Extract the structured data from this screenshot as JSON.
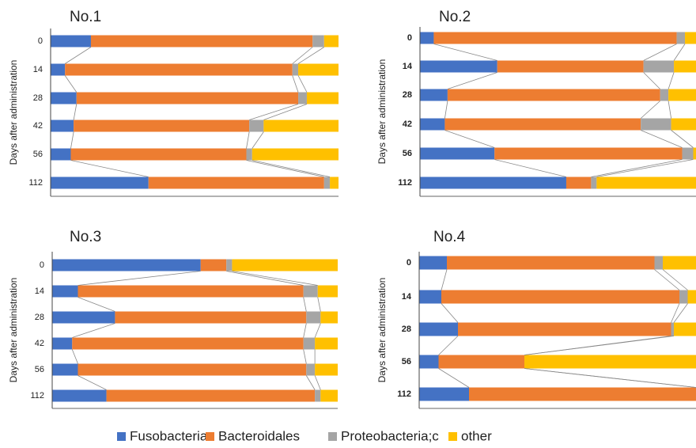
{
  "chart_data": [
    {
      "type": "stacked-bar",
      "title": "No.1",
      "ylabel": "Days after administration",
      "xlim": [
        0,
        100
      ],
      "categories": [
        "0",
        "14",
        "28",
        "42",
        "56",
        "112"
      ],
      "series": [
        {
          "name": "Fusobacteria",
          "color": "#4472c4",
          "values": [
            14,
            5,
            9,
            8,
            7,
            34
          ]
        },
        {
          "name": "Bacteroidales",
          "color": "#ed7d31",
          "values": [
            77,
            79,
            77,
            61,
            61,
            61
          ]
        },
        {
          "name": "Proteobacteria;c",
          "color": "#a5a5a5",
          "values": [
            4,
            2,
            3,
            5,
            2,
            2
          ]
        },
        {
          "name": "other",
          "color": "#ffc000",
          "values": [
            5,
            14,
            11,
            26,
            30,
            3
          ]
        }
      ]
    },
    {
      "type": "stacked-bar",
      "title": "No.2",
      "ylabel": "Days after administration",
      "xlim": [
        0,
        100
      ],
      "categories": [
        "0",
        "14",
        "28",
        "42",
        "56",
        "112"
      ],
      "series": [
        {
          "name": "Fusobacteria",
          "color": "#4472c4",
          "values": [
            5,
            28,
            10,
            9,
            27,
            53
          ]
        },
        {
          "name": "Bacteroidales",
          "color": "#ed7d31",
          "values": [
            88,
            53,
            77,
            71,
            68,
            9
          ]
        },
        {
          "name": "Proteobacteria;c",
          "color": "#a5a5a5",
          "values": [
            3,
            11,
            3,
            11,
            4,
            2
          ]
        },
        {
          "name": "other",
          "color": "#ffc000",
          "values": [
            4,
            8,
            10,
            9,
            1,
            36
          ]
        }
      ]
    },
    {
      "type": "stacked-bar",
      "title": "No.3",
      "ylabel": "Days after administration",
      "xlim": [
        0,
        100
      ],
      "categories": [
        "0",
        "14",
        "28",
        "42",
        "56",
        "112"
      ],
      "series": [
        {
          "name": "Fusobacteria",
          "color": "#4472c4",
          "values": [
            52,
            9,
            22,
            7,
            9,
            19
          ]
        },
        {
          "name": "Bacteroidales",
          "color": "#ed7d31",
          "values": [
            9,
            79,
            67,
            81,
            80,
            73
          ]
        },
        {
          "name": "Proteobacteria;c",
          "color": "#a5a5a5",
          "values": [
            2,
            5,
            5,
            4,
            3,
            2
          ]
        },
        {
          "name": "other",
          "color": "#ffc000",
          "values": [
            37,
            7,
            6,
            8,
            8,
            6
          ]
        }
      ]
    },
    {
      "type": "stacked-bar",
      "title": "No.4",
      "ylabel": "Days after administration",
      "xlim": [
        0,
        100
      ],
      "categories": [
        "0",
        "14",
        "28",
        "56",
        "112"
      ],
      "series": [
        {
          "name": "Fusobacteria",
          "color": "#4472c4",
          "values": [
            10,
            8,
            14,
            7,
            18
          ]
        },
        {
          "name": "Bacteroidales",
          "color": "#ed7d31",
          "values": [
            75,
            86,
            77,
            31,
            82
          ]
        },
        {
          "name": "Proteobacteria;c",
          "color": "#a5a5a5",
          "values": [
            3,
            3,
            1,
            0,
            0
          ]
        },
        {
          "name": "other",
          "color": "#ffc000",
          "values": [
            12,
            3,
            8,
            62,
            0
          ]
        }
      ]
    }
  ]
}
